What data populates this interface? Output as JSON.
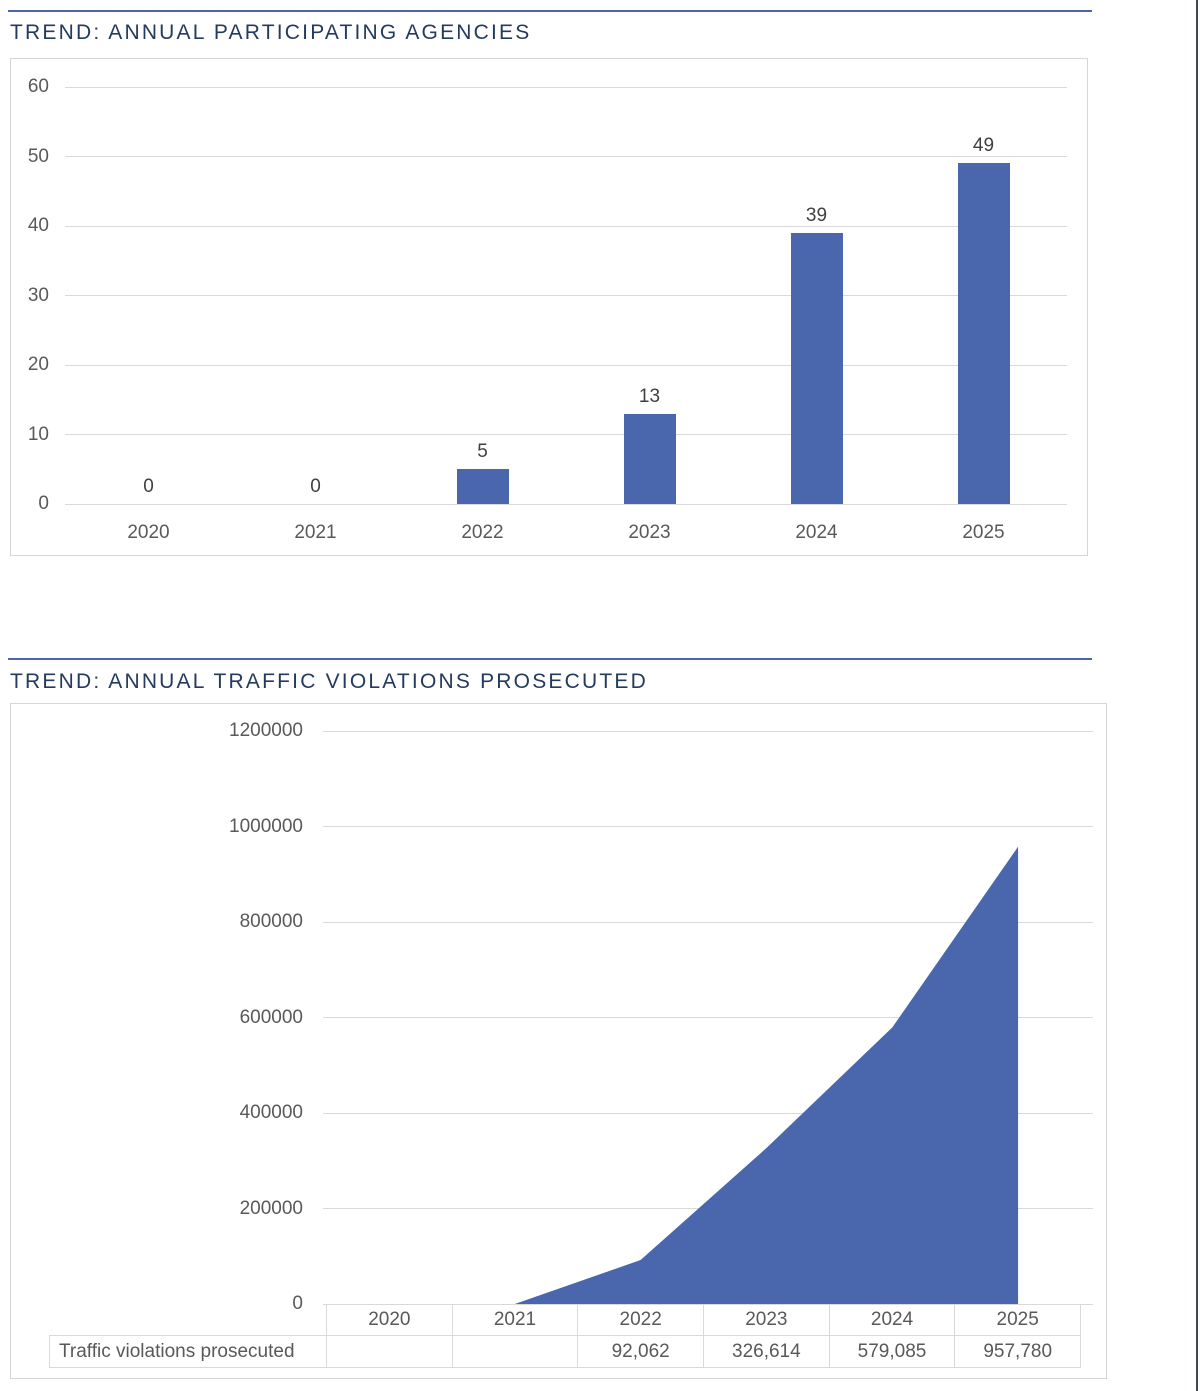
{
  "page": {
    "background": "#ffffff",
    "accent_color": "#4a67ad",
    "rule_color": "#4c66aa",
    "title_color": "#243a5e",
    "grid_color": "#d9d9d9",
    "axis_text_color": "#595959",
    "data_label_color": "#404040",
    "right_edge_color": "#3e4a63"
  },
  "sections": [
    {
      "title": "TREND: ANNUAL PARTICIPATING AGENCIES"
    },
    {
      "title": "TREND: ANNUAL TRAFFIC VIOLATIONS PROSECUTED"
    }
  ],
  "chart_data": [
    {
      "type": "bar",
      "title": "TREND: ANNUAL PARTICIPATING AGENCIES",
      "categories": [
        "2020",
        "2021",
        "2022",
        "2023",
        "2024",
        "2025"
      ],
      "values": [
        0,
        0,
        5,
        13,
        39,
        49
      ],
      "data_labels": [
        "0",
        "0",
        "5",
        "13",
        "39",
        "49"
      ],
      "xlabel": "",
      "ylabel": "",
      "ylim": [
        0,
        60
      ],
      "yticks": [
        0,
        10,
        20,
        30,
        40,
        50,
        60
      ],
      "ytick_labels": [
        "0",
        "10",
        "20",
        "30",
        "40",
        "50",
        "60"
      ],
      "grid": true,
      "legend": "none",
      "bar_color": "#4a67ad"
    },
    {
      "type": "area",
      "title": "TREND: ANNUAL TRAFFIC VIOLATIONS PROSECUTED",
      "categories": [
        "2020",
        "2021",
        "2022",
        "2023",
        "2024",
        "2025"
      ],
      "series": [
        {
          "name": "Traffic violations prosecuted",
          "values": [
            null,
            0,
            92062,
            326614,
            579085,
            957780
          ]
        }
      ],
      "xlabel": "",
      "ylabel": "",
      "ylim": [
        0,
        1200000
      ],
      "yticks": [
        0,
        200000,
        400000,
        600000,
        800000,
        1000000,
        1200000
      ],
      "ytick_labels": [
        "0",
        "200000",
        "400000",
        "600000",
        "800000",
        "1000000",
        "1200000"
      ],
      "grid": true,
      "legend": "none",
      "area_color": "#4a67ad",
      "data_table": {
        "row_label": "Traffic violations prosecuted",
        "column_headers": [
          "2020",
          "2021",
          "2022",
          "2023",
          "2024",
          "2025"
        ],
        "cell_values": [
          "",
          "",
          "92,062",
          "326,614",
          "579,085",
          "957,780"
        ]
      }
    }
  ]
}
